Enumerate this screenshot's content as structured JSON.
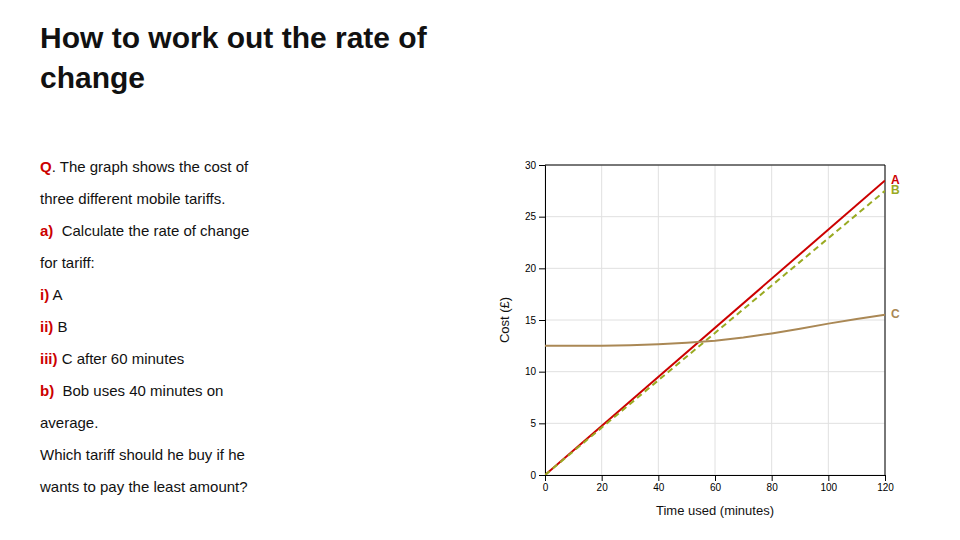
{
  "chart_data": {
    "type": "line",
    "title": [
      "How to work out the rate of",
      "change"
    ],
    "annotations": [
      [
        {
          "text": "Q",
          "color": "#cc0000",
          "bold": true
        },
        {
          "text": ". The graph shows the cost of",
          "color": "#111111",
          "bold": false
        }
      ],
      [
        {
          "text": "three different mobile tariffs.",
          "color": "#111111",
          "bold": false
        }
      ],
      [
        {
          "text": "a)",
          "color": "#cc0000",
          "bold": true
        },
        {
          "text": "  Calculate the rate of change",
          "color": "#111111",
          "bold": false
        }
      ],
      [
        {
          "text": "for tariff:",
          "color": "#111111",
          "bold": false
        }
      ],
      [
        {
          "text": "i)",
          "color": "#cc0000",
          "bold": true
        },
        {
          "text": " A",
          "color": "#111111",
          "bold": false
        }
      ],
      [
        {
          "text": "ii)",
          "color": "#cc0000",
          "bold": true
        },
        {
          "text": " B",
          "color": "#111111",
          "bold": false
        }
      ],
      [
        {
          "text": "iii)",
          "color": "#cc0000",
          "bold": true
        },
        {
          "text": " C after 60 minutes",
          "color": "#111111",
          "bold": false
        }
      ],
      [
        {
          "text": "b)",
          "color": "#cc0000",
          "bold": true
        },
        {
          "text": "  Bob uses 40 minutes on",
          "color": "#111111",
          "bold": false
        }
      ],
      [
        {
          "text": "average.",
          "color": "#111111",
          "bold": false
        }
      ],
      [
        {
          "text": "Which tariff should he buy if he",
          "color": "#111111",
          "bold": false
        }
      ],
      [
        {
          "text": "wants to pay the least amount?",
          "color": "#111111",
          "bold": false
        }
      ]
    ],
    "x_label": "Time used (minutes)",
    "y_label": "Cost (£)",
    "xlim": [
      0,
      120
    ],
    "ylim": [
      0,
      30
    ],
    "xticks": [
      0,
      20,
      40,
      60,
      80,
      100,
      120
    ],
    "yticks": [
      0,
      5,
      10,
      15,
      20,
      25,
      30
    ],
    "grid": true,
    "series": [
      {
        "name": "A",
        "color": "#cc0000",
        "line_style": "solid",
        "x": [
          0,
          120
        ],
        "values": [
          0,
          28.5
        ]
      },
      {
        "name": "B",
        "color": "#99aa22",
        "line_style": "dashed",
        "x": [
          0,
          120
        ],
        "values": [
          0,
          27.5
        ]
      },
      {
        "name": "C",
        "color": "#aa8855",
        "line_style": "solid",
        "x": [
          0,
          10,
          20,
          30,
          40,
          50,
          60,
          70,
          80,
          90,
          100,
          110,
          120
        ],
        "values": [
          12.5,
          12.5,
          12.5,
          12.55,
          12.65,
          12.8,
          13.0,
          13.3,
          13.7,
          14.15,
          14.65,
          15.1,
          15.5
        ]
      }
    ]
  }
}
